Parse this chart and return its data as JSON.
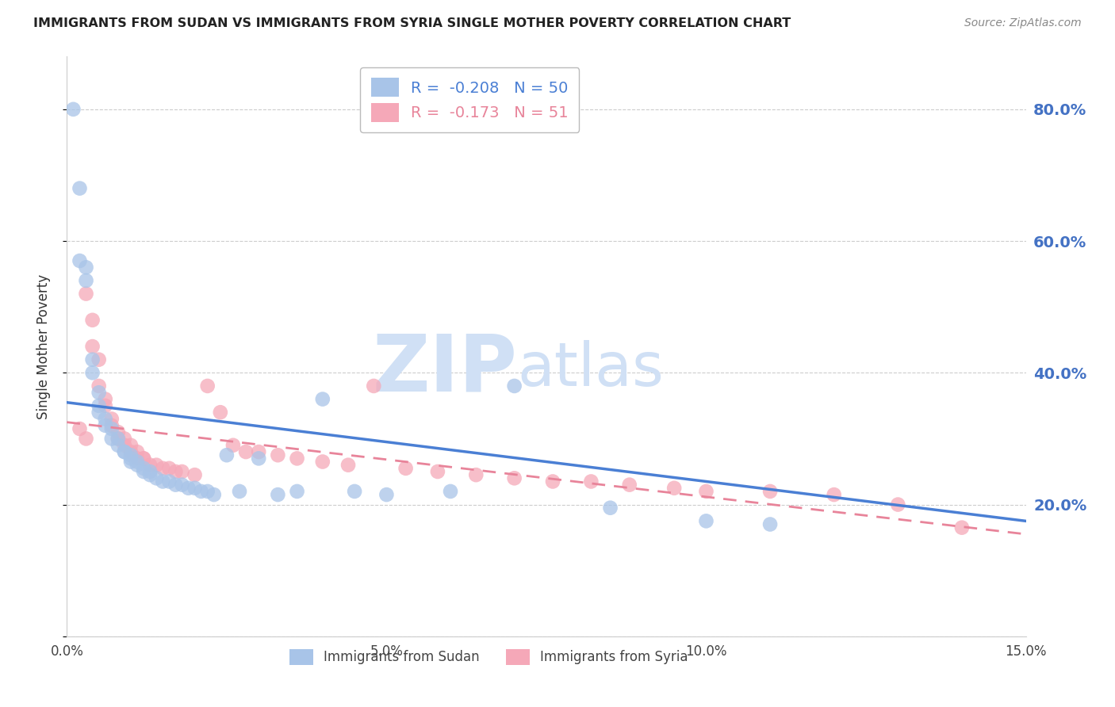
{
  "title": "IMMIGRANTS FROM SUDAN VS IMMIGRANTS FROM SYRIA SINGLE MOTHER POVERTY CORRELATION CHART",
  "source": "Source: ZipAtlas.com",
  "ylabel": "Single Mother Poverty",
  "x_min": 0.0,
  "x_max": 0.15,
  "y_min": 0.0,
  "y_max": 0.88,
  "yticks": [
    0.0,
    0.2,
    0.4,
    0.6,
    0.8
  ],
  "ytick_labels": [
    "",
    "20.0%",
    "40.0%",
    "60.0%",
    "80.0%"
  ],
  "xticks": [
    0.0,
    0.05,
    0.1,
    0.15
  ],
  "xtick_labels": [
    "0.0%",
    "5.0%",
    "10.0%",
    "15.0%"
  ],
  "sudan_R": -0.208,
  "sudan_N": 50,
  "syria_R": -0.173,
  "syria_N": 51,
  "sudan_color": "#a8c4e8",
  "syria_color": "#f5a8b8",
  "sudan_line_color": "#4a7fd4",
  "syria_line_color": "#e8849a",
  "watermark_zip": "ZIP",
  "watermark_atlas": "atlas",
  "watermark_color": "#d0e0f5",
  "legend_sudan": "Immigrants from Sudan",
  "legend_syria": "Immigrants from Syria",
  "sudan_line_x0": 0.0,
  "sudan_line_x1": 0.15,
  "sudan_line_y0": 0.355,
  "sudan_line_y1": 0.175,
  "syria_line_x0": 0.0,
  "syria_line_x1": 0.15,
  "syria_line_y0": 0.325,
  "syria_line_y1": 0.155,
  "sudan_x": [
    0.001,
    0.002,
    0.002,
    0.003,
    0.003,
    0.004,
    0.004,
    0.005,
    0.005,
    0.005,
    0.006,
    0.006,
    0.007,
    0.007,
    0.008,
    0.008,
    0.009,
    0.009,
    0.01,
    0.01,
    0.01,
    0.011,
    0.011,
    0.012,
    0.012,
    0.013,
    0.013,
    0.014,
    0.015,
    0.016,
    0.017,
    0.018,
    0.019,
    0.02,
    0.021,
    0.022,
    0.023,
    0.025,
    0.027,
    0.03,
    0.033,
    0.036,
    0.04,
    0.045,
    0.05,
    0.06,
    0.07,
    0.085,
    0.1,
    0.11
  ],
  "sudan_y": [
    0.8,
    0.68,
    0.57,
    0.56,
    0.54,
    0.42,
    0.4,
    0.37,
    0.35,
    0.34,
    0.33,
    0.32,
    0.315,
    0.3,
    0.3,
    0.29,
    0.28,
    0.28,
    0.275,
    0.27,
    0.265,
    0.265,
    0.26,
    0.255,
    0.25,
    0.25,
    0.245,
    0.24,
    0.235,
    0.235,
    0.23,
    0.23,
    0.225,
    0.225,
    0.22,
    0.22,
    0.215,
    0.275,
    0.22,
    0.27,
    0.215,
    0.22,
    0.36,
    0.22,
    0.215,
    0.22,
    0.38,
    0.195,
    0.175,
    0.17
  ],
  "syria_x": [
    0.002,
    0.003,
    0.003,
    0.004,
    0.004,
    0.005,
    0.005,
    0.006,
    0.006,
    0.007,
    0.007,
    0.008,
    0.008,
    0.009,
    0.009,
    0.01,
    0.01,
    0.011,
    0.011,
    0.012,
    0.012,
    0.013,
    0.014,
    0.015,
    0.016,
    0.017,
    0.018,
    0.02,
    0.022,
    0.024,
    0.026,
    0.028,
    0.03,
    0.033,
    0.036,
    0.04,
    0.044,
    0.048,
    0.053,
    0.058,
    0.064,
    0.07,
    0.076,
    0.082,
    0.088,
    0.095,
    0.1,
    0.11,
    0.12,
    0.13,
    0.14
  ],
  "syria_y": [
    0.315,
    0.3,
    0.52,
    0.48,
    0.44,
    0.42,
    0.38,
    0.36,
    0.35,
    0.33,
    0.32,
    0.31,
    0.3,
    0.3,
    0.29,
    0.29,
    0.28,
    0.28,
    0.27,
    0.27,
    0.27,
    0.26,
    0.26,
    0.255,
    0.255,
    0.25,
    0.25,
    0.245,
    0.38,
    0.34,
    0.29,
    0.28,
    0.28,
    0.275,
    0.27,
    0.265,
    0.26,
    0.38,
    0.255,
    0.25,
    0.245,
    0.24,
    0.235,
    0.235,
    0.23,
    0.225,
    0.22,
    0.22,
    0.215,
    0.2,
    0.165
  ]
}
